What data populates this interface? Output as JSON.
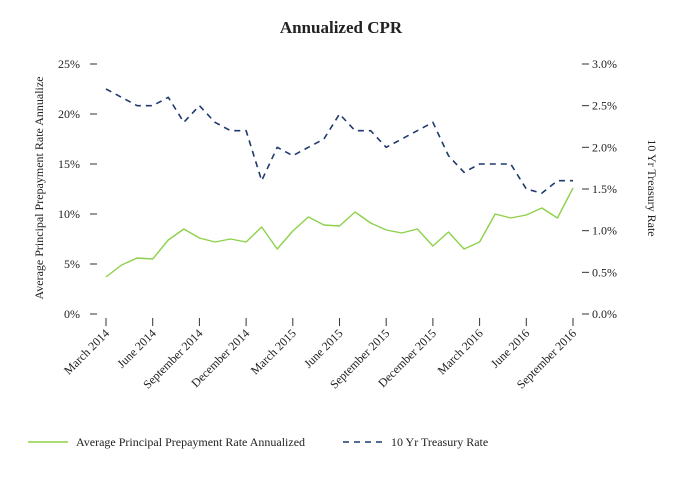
{
  "chart_data": {
    "type": "line",
    "title": "Annualized CPR",
    "xlabel": "",
    "ylabel_left": "Average Principal Prepayment Rate Annualize",
    "ylabel_right": "10 Yr Treasury Rate",
    "ylim_left": [
      0,
      25
    ],
    "ylim_right": [
      0.0,
      3.0
    ],
    "left_ticks": [
      0,
      5,
      10,
      15,
      20,
      25
    ],
    "left_tick_labels": [
      "0%",
      "5%",
      "10%",
      "15%",
      "20%",
      "25%"
    ],
    "right_ticks": [
      0.0,
      0.5,
      1.0,
      1.5,
      2.0,
      2.5,
      3.0
    ],
    "right_tick_labels": [
      "0.0%",
      "0.5%",
      "1.0%",
      "1.5%",
      "2.0%",
      "2.5%",
      "3.0%"
    ],
    "grid": false,
    "legend_position": "bottom",
    "x_tick_labels": [
      {
        "label": "March 2014",
        "index": 0
      },
      {
        "label": "June 2014",
        "index": 3
      },
      {
        "label": "September 2014",
        "index": 6
      },
      {
        "label": "December 2014",
        "index": 9
      },
      {
        "label": "March 2015",
        "index": 12
      },
      {
        "label": "June 2015",
        "index": 15
      },
      {
        "label": "September 2015",
        "index": 18
      },
      {
        "label": "December 2015",
        "index": 21
      },
      {
        "label": "March 2016",
        "index": 24
      },
      {
        "label": "June 2016",
        "index": 27
      },
      {
        "label": "September 2016",
        "index": 30
      }
    ],
    "series": [
      {
        "name": "Average Principal Prepayment Rate Annualized",
        "axis": "left",
        "color": "#8dd14b",
        "dash": "solid",
        "values": [
          3.7,
          4.9,
          5.6,
          5.5,
          7.4,
          8.5,
          7.6,
          7.2,
          7.5,
          7.2,
          8.7,
          6.5,
          8.3,
          9.7,
          8.9,
          8.8,
          10.2,
          9.1,
          8.4,
          8.1,
          8.5,
          6.8,
          8.2,
          6.5,
          7.2,
          10.0,
          9.6,
          9.9,
          10.6,
          9.6,
          12.6
        ]
      },
      {
        "name": "10 Yr Treasury Rate",
        "axis": "right",
        "color": "#1f3a6e",
        "dash": "dashed",
        "values": [
          2.7,
          2.6,
          2.5,
          2.5,
          2.6,
          2.3,
          2.5,
          2.3,
          2.2,
          2.2,
          1.6,
          2.0,
          1.9,
          2.0,
          2.1,
          2.4,
          2.2,
          2.2,
          2.0,
          2.1,
          2.2,
          2.3,
          1.9,
          1.7,
          1.8,
          1.8,
          1.8,
          1.5,
          1.45,
          1.6,
          1.6
        ]
      }
    ]
  }
}
